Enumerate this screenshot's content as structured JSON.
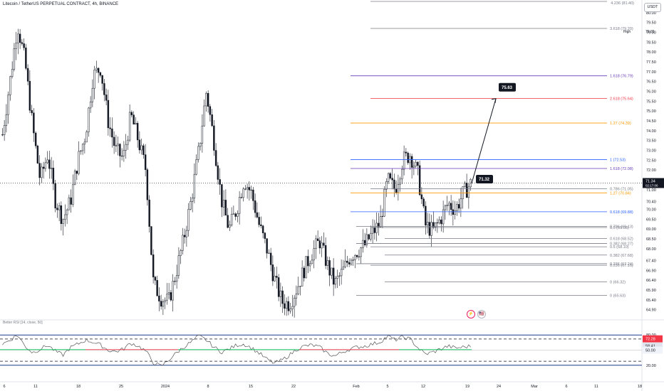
{
  "header": {
    "symbol_title": "Litecoin / TetherUS PERPETUAL CONTRACT, 4h, BINANCE",
    "currency_button": "USDT",
    "rsi_title": "Better RSI [14, close, 50]"
  },
  "events": {
    "flash_icon": "⚡",
    "flag_icon": "🇺🇸"
  },
  "colors": {
    "candle": "#131722",
    "blue": "#2962ff",
    "purple": "#673ab7",
    "orange": "#ff9800",
    "red": "#f23645",
    "gray": "#787b86",
    "rsi_red": "#f23645",
    "rsi_green": "#00c853",
    "rsi_band": "#1e3a8a"
  },
  "chart_data": [
    {
      "type": "candlestick",
      "y_axis_ticks": [
        64.9,
        65.4,
        65.9,
        66.4,
        66.9,
        67.4,
        68.0,
        68.5,
        69.0,
        69.5,
        70.0,
        70.4,
        71.0,
        71.5,
        72.0,
        72.5,
        73.0,
        73.5,
        74.0,
        74.5,
        75.0,
        75.5,
        76.0,
        76.5,
        77.0,
        77.5,
        78.0,
        78.5,
        79.0,
        79.5,
        80.0
      ],
      "x_axis_labels": [
        "6",
        "11",
        "18",
        "25",
        "2024",
        "8",
        "15",
        "22",
        "Feb",
        "5",
        "12",
        "19",
        "24",
        "Mar",
        "6",
        "11",
        "18"
      ],
      "high_label": "High",
      "high_value": "79.65",
      "last_price": "71.34",
      "countdown": "02:17:06",
      "axis_top_label": "4.236 (81.40)",
      "ylim": [
        64.6,
        80.5
      ],
      "series_close_path": [
        73.8,
        76.5,
        79.4,
        77.5,
        74.2,
        71.5,
        72.8,
        70.5,
        69.5,
        70.4,
        72.5,
        73.8,
        76.8,
        77.2,
        74.5,
        73.0,
        72.6,
        74.8,
        73.5,
        72.0,
        66.2,
        65.5,
        65.3,
        66.8,
        68.5,
        70.5,
        73.0,
        76.0,
        73.5,
        70.5,
        69.0,
        70.0,
        71.5,
        70.8,
        69.2,
        68.0,
        66.5,
        65.3,
        65.2,
        66.0,
        67.0,
        67.8,
        68.4,
        67.2,
        66.2,
        66.8,
        67.6,
        67.9,
        68.2,
        68.8,
        69.3,
        71.5,
        71.0,
        72.5,
        72.8,
        71.8,
        69.2,
        68.9,
        69.5,
        70.3,
        70.0,
        70.8,
        71.3
      ],
      "annotations": [
        {
          "label": "75.63",
          "value": 75.63
        },
        {
          "label": "71.32",
          "value": 71.32
        }
      ],
      "fib_levels": [
        {
          "label": "3.618 (79.20)",
          "value": 79.2,
          "color": "gray"
        },
        {
          "label": "1.618 (76.79)",
          "value": 76.79,
          "color": "purple"
        },
        {
          "label": "2.618 (75.64)",
          "value": 75.64,
          "color": "red"
        },
        {
          "label": "1.27 (74.39)",
          "value": 74.39,
          "color": "orange"
        },
        {
          "label": "1 (72.53)",
          "value": 72.53,
          "color": "blue"
        },
        {
          "label": "1.618 (72.08)",
          "value": 72.08,
          "color": "purple"
        },
        {
          "label": "0.786 (71.05)",
          "value": 71.05,
          "color": "gray"
        },
        {
          "label": "1.27 (70.84)",
          "value": 70.84,
          "color": "orange"
        },
        {
          "label": "0.618 (69.88)",
          "value": 69.88,
          "color": "blue"
        },
        {
          "label": "0.786 (69.13)",
          "value": 69.13,
          "color": "gray"
        },
        {
          "label": "0.5 (69.08)",
          "value": 69.08,
          "color": "gray"
        },
        {
          "label": "0.618 (68.52)",
          "value": 68.52,
          "color": "gray"
        },
        {
          "label": "0.382 (68.27)",
          "value": 68.27,
          "color": "gray"
        },
        {
          "label": "0.5 (68.10)",
          "value": 68.1,
          "color": "gray"
        },
        {
          "label": "0.382 (67.68)",
          "value": 67.68,
          "color": "gray"
        },
        {
          "label": "0.236 (67.24)",
          "value": 67.24,
          "color": "gray"
        },
        {
          "label": "0.236 (67.16)",
          "value": 67.16,
          "color": "gray"
        },
        {
          "label": "0 (66.32)",
          "value": 66.32,
          "color": "gray"
        },
        {
          "label": "0 (65.63)",
          "value": 65.63,
          "color": "gray"
        }
      ]
    },
    {
      "type": "line",
      "name": "Better RSI",
      "y_axis_ticks": [
        20.0,
        50.0,
        80.0
      ],
      "overbought": 72.28,
      "current": 58.41,
      "midline": 50.0,
      "values": [
        62,
        70,
        80,
        58,
        45,
        52,
        60,
        48,
        40,
        55,
        62,
        70,
        66,
        60,
        50,
        47,
        52,
        64,
        58,
        48,
        25,
        18,
        30,
        44,
        56,
        66,
        78,
        70,
        56,
        46,
        52,
        60,
        62,
        54,
        44,
        32,
        24,
        30,
        40,
        52,
        58,
        60,
        56,
        44,
        38,
        46,
        52,
        56,
        58,
        62,
        66,
        78,
        70,
        76,
        72,
        55,
        42,
        46,
        52,
        58,
        54,
        56,
        58
      ]
    }
  ]
}
